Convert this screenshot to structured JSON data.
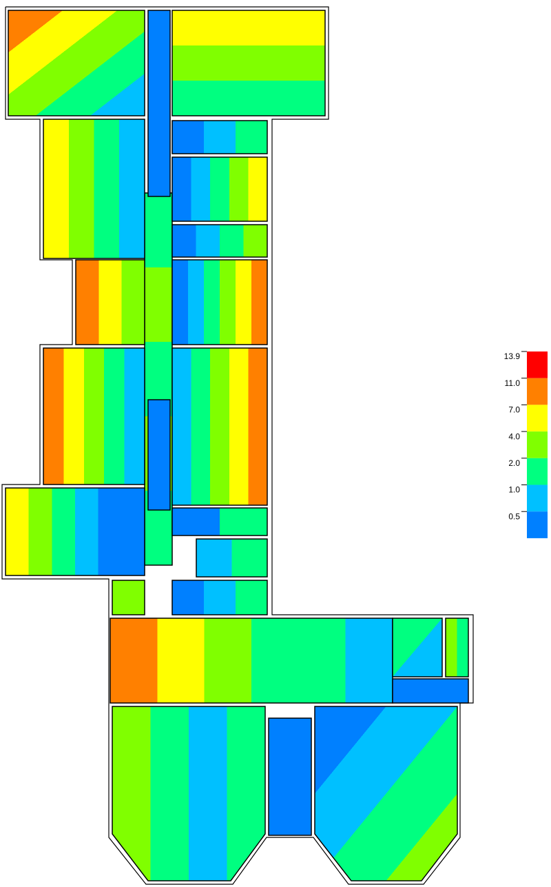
{
  "legend": {
    "items": [
      {
        "label": "13.9",
        "color": "#ff0000"
      },
      {
        "label": "11.0",
        "color": "#ff8000"
      },
      {
        "label": "7.0",
        "color": "#ffff00"
      },
      {
        "label": "4.0",
        "color": "#80ff00"
      },
      {
        "label": "2.0",
        "color": "#00ff80"
      },
      {
        "label": "1.0",
        "color": "#00c0ff"
      },
      {
        "label": "0.5",
        "color": "#0080ff"
      }
    ]
  }
}
